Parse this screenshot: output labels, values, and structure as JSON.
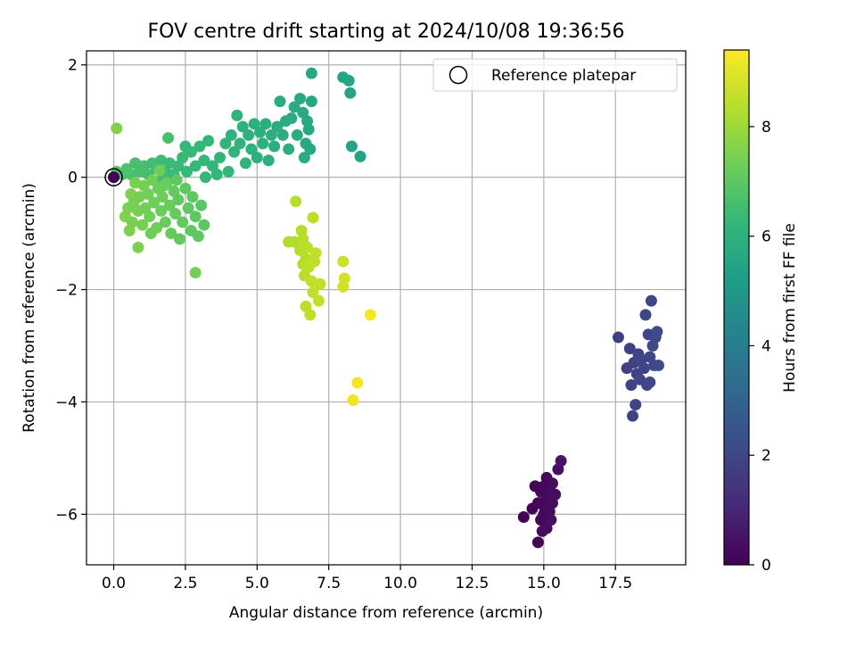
{
  "chart_data": {
    "type": "scatter",
    "title": "FOV centre drift starting at 2024/10/08 19:36:56",
    "xlabel": "Angular distance from reference (arcmin)",
    "ylabel": "Rotation from reference (arcmin)",
    "xlim": [
      -0.95,
      19.95
    ],
    "ylim": [
      -6.9,
      2.25
    ],
    "xticks": [
      0.0,
      2.5,
      5.0,
      7.5,
      10.0,
      12.5,
      15.0,
      17.5
    ],
    "xtick_labels": [
      "0.0",
      "2.5",
      "5.0",
      "7.5",
      "10.0",
      "12.5",
      "15.0",
      "17.5"
    ],
    "yticks": [
      2,
      0,
      -2,
      -4,
      -6
    ],
    "ytick_labels": [
      "2",
      "0",
      "−2",
      "−4",
      "−6"
    ],
    "grid": true,
    "colormap": "viridis",
    "colormap_stops": [
      "#440154",
      "#482878",
      "#3e4989",
      "#31688e",
      "#26828e",
      "#1f9e89",
      "#35b779",
      "#6ece58",
      "#b5de2b",
      "#fde725"
    ],
    "colorbar": {
      "label": "Hours from first FF file",
      "range": [
        0,
        9.4
      ],
      "ticks": [
        0,
        2,
        4,
        6,
        8
      ],
      "tick_labels": [
        "0",
        "2",
        "4",
        "6",
        "8"
      ]
    },
    "legend": {
      "label": "Reference platepar",
      "placement": "top-right"
    },
    "reference_point": {
      "x": 0.0,
      "y": 0.0,
      "c": 0.0
    },
    "series": [
      {
        "points": [
          {
            "x": 14.3,
            "y": -6.05,
            "c": 0.1
          },
          {
            "x": 14.6,
            "y": -5.9,
            "c": 0.1
          },
          {
            "x": 14.7,
            "y": -5.5,
            "c": 0.1
          },
          {
            "x": 14.8,
            "y": -6.5,
            "c": 0.1
          },
          {
            "x": 14.8,
            "y": -5.8,
            "c": 0.15
          },
          {
            "x": 14.9,
            "y": -6.1,
            "c": 0.15
          },
          {
            "x": 14.9,
            "y": -5.6,
            "c": 0.15
          },
          {
            "x": 15.0,
            "y": -5.85,
            "c": 0.15
          },
          {
            "x": 15.0,
            "y": -5.5,
            "c": 0.2
          },
          {
            "x": 15.0,
            "y": -6.0,
            "c": 0.2
          },
          {
            "x": 15.1,
            "y": -5.7,
            "c": 0.2
          },
          {
            "x": 15.1,
            "y": -5.35,
            "c": 0.2
          },
          {
            "x": 15.1,
            "y": -6.25,
            "c": 0.25
          },
          {
            "x": 15.2,
            "y": -5.95,
            "c": 0.25
          },
          {
            "x": 15.2,
            "y": -5.55,
            "c": 0.25
          },
          {
            "x": 15.3,
            "y": -5.8,
            "c": 0.3
          },
          {
            "x": 15.3,
            "y": -5.45,
            "c": 0.3
          },
          {
            "x": 15.4,
            "y": -5.65,
            "c": 0.35
          },
          {
            "x": 14.95,
            "y": -6.3,
            "c": 0.3
          },
          {
            "x": 15.25,
            "y": -6.1,
            "c": 0.35
          },
          {
            "x": 15.5,
            "y": -5.2,
            "c": 0.4
          },
          {
            "x": 15.6,
            "y": -5.05,
            "c": 0.45
          }
        ]
      },
      {
        "points": [
          {
            "x": 17.6,
            "y": -2.85,
            "c": 1.75
          },
          {
            "x": 17.9,
            "y": -3.4,
            "c": 1.8
          },
          {
            "x": 18.0,
            "y": -3.05,
            "c": 1.8
          },
          {
            "x": 18.05,
            "y": -3.7,
            "c": 1.85
          },
          {
            "x": 18.1,
            "y": -4.25,
            "c": 1.85
          },
          {
            "x": 18.15,
            "y": -3.3,
            "c": 1.85
          },
          {
            "x": 18.2,
            "y": -4.05,
            "c": 1.9
          },
          {
            "x": 18.25,
            "y": -3.5,
            "c": 1.9
          },
          {
            "x": 18.3,
            "y": -3.15,
            "c": 1.9
          },
          {
            "x": 18.35,
            "y": -3.6,
            "c": 1.95
          },
          {
            "x": 18.4,
            "y": -3.25,
            "c": 1.95
          },
          {
            "x": 18.5,
            "y": -3.4,
            "c": 1.95
          },
          {
            "x": 18.55,
            "y": -2.45,
            "c": 2.0
          },
          {
            "x": 18.6,
            "y": -3.7,
            "c": 2.0
          },
          {
            "x": 18.65,
            "y": -2.8,
            "c": 2.0
          },
          {
            "x": 18.7,
            "y": -3.2,
            "c": 2.05
          },
          {
            "x": 18.7,
            "y": -3.65,
            "c": 2.05
          },
          {
            "x": 18.75,
            "y": -2.2,
            "c": 2.05
          },
          {
            "x": 18.8,
            "y": -3.0,
            "c": 2.1
          },
          {
            "x": 18.85,
            "y": -3.35,
            "c": 2.1
          },
          {
            "x": 18.9,
            "y": -2.85,
            "c": 2.1
          },
          {
            "x": 18.95,
            "y": -2.75,
            "c": 2.15
          },
          {
            "x": 19.0,
            "y": -3.35,
            "c": 2.15
          }
        ]
      },
      {
        "points": [
          {
            "x": 3.6,
            "y": 0.05,
            "c": 6.2
          },
          {
            "x": 3.7,
            "y": 0.35,
            "c": 6.15
          },
          {
            "x": 3.9,
            "y": 0.6,
            "c": 6.1
          },
          {
            "x": 4.0,
            "y": 0.1,
            "c": 6.2
          },
          {
            "x": 4.1,
            "y": 0.75,
            "c": 6.1
          },
          {
            "x": 4.2,
            "y": 0.45,
            "c": 6.1
          },
          {
            "x": 4.3,
            "y": 1.1,
            "c": 6.05
          },
          {
            "x": 4.4,
            "y": 0.6,
            "c": 6.05
          },
          {
            "x": 4.5,
            "y": 0.9,
            "c": 6.0
          },
          {
            "x": 4.6,
            "y": 0.25,
            "c": 6.1
          },
          {
            "x": 4.7,
            "y": 0.75,
            "c": 6.0
          },
          {
            "x": 4.8,
            "y": 0.5,
            "c": 6.0
          },
          {
            "x": 4.9,
            "y": 0.95,
            "c": 5.95
          },
          {
            "x": 5.0,
            "y": 0.35,
            "c": 6.0
          },
          {
            "x": 5.1,
            "y": 0.8,
            "c": 5.95
          },
          {
            "x": 5.2,
            "y": 0.6,
            "c": 5.95
          },
          {
            "x": 5.3,
            "y": 0.95,
            "c": 5.9
          },
          {
            "x": 5.4,
            "y": 0.3,
            "c": 5.95
          },
          {
            "x": 5.5,
            "y": 0.75,
            "c": 5.9
          },
          {
            "x": 5.6,
            "y": 0.55,
            "c": 5.9
          },
          {
            "x": 5.7,
            "y": 0.9,
            "c": 5.85
          },
          {
            "x": 5.8,
            "y": 1.35,
            "c": 5.8
          },
          {
            "x": 5.9,
            "y": 0.75,
            "c": 5.85
          },
          {
            "x": 6.0,
            "y": 1.0,
            "c": 5.8
          },
          {
            "x": 6.1,
            "y": 0.5,
            "c": 5.85
          },
          {
            "x": 6.2,
            "y": 1.05,
            "c": 5.75
          },
          {
            "x": 6.3,
            "y": 1.25,
            "c": 5.75
          },
          {
            "x": 6.4,
            "y": 0.75,
            "c": 5.75
          },
          {
            "x": 6.5,
            "y": 1.4,
            "c": 5.7
          },
          {
            "x": 6.6,
            "y": 1.15,
            "c": 5.7
          },
          {
            "x": 6.65,
            "y": 0.35,
            "c": 5.75
          },
          {
            "x": 6.7,
            "y": 0.6,
            "c": 5.7
          },
          {
            "x": 6.75,
            "y": 1.0,
            "c": 5.7
          },
          {
            "x": 6.8,
            "y": 0.85,
            "c": 5.65
          },
          {
            "x": 6.85,
            "y": 0.5,
            "c": 5.65
          },
          {
            "x": 6.9,
            "y": 1.35,
            "c": 5.65
          },
          {
            "x": 6.9,
            "y": 1.85,
            "c": 5.6
          },
          {
            "x": 8.0,
            "y": 1.78,
            "c": 5.5
          },
          {
            "x": 8.2,
            "y": 1.72,
            "c": 5.5
          },
          {
            "x": 8.25,
            "y": 1.5,
            "c": 5.5
          },
          {
            "x": 8.3,
            "y": 0.55,
            "c": 5.45
          },
          {
            "x": 8.6,
            "y": 0.37,
            "c": 5.4
          }
        ]
      },
      {
        "points": [
          {
            "x": 0.1,
            "y": 0.1,
            "c": 6.8
          },
          {
            "x": 0.3,
            "y": 0.05,
            "c": 6.75
          },
          {
            "x": 0.45,
            "y": 0.15,
            "c": 6.7
          },
          {
            "x": 0.6,
            "y": 0.05,
            "c": 6.7
          },
          {
            "x": 0.75,
            "y": 0.25,
            "c": 6.65
          },
          {
            "x": 0.9,
            "y": 0.1,
            "c": 6.6
          },
          {
            "x": 1.05,
            "y": 0.2,
            "c": 6.6
          },
          {
            "x": 1.2,
            "y": 0.05,
            "c": 6.55
          },
          {
            "x": 1.35,
            "y": 0.25,
            "c": 6.5
          },
          {
            "x": 1.5,
            "y": 0.15,
            "c": 6.5
          },
          {
            "x": 1.65,
            "y": 0.3,
            "c": 6.45
          },
          {
            "x": 1.8,
            "y": 0.1,
            "c": 6.45
          },
          {
            "x": 1.95,
            "y": 0.25,
            "c": 6.4
          },
          {
            "x": 2.1,
            "y": 0.05,
            "c": 6.4
          },
          {
            "x": 2.25,
            "y": 0.2,
            "c": 6.35
          },
          {
            "x": 2.4,
            "y": 0.35,
            "c": 6.35
          },
          {
            "x": 2.55,
            "y": 0.1,
            "c": 6.3
          },
          {
            "x": 2.7,
            "y": 0.45,
            "c": 6.3
          },
          {
            "x": 2.85,
            "y": 0.2,
            "c": 6.3
          },
          {
            "x": 3.0,
            "y": 0.55,
            "c": 6.25
          },
          {
            "x": 3.15,
            "y": 0.3,
            "c": 6.25
          },
          {
            "x": 3.3,
            "y": 0.65,
            "c": 6.2
          },
          {
            "x": 3.45,
            "y": 0.2,
            "c": 6.2
          },
          {
            "x": 2.5,
            "y": 0.55,
            "c": 6.3
          },
          {
            "x": 3.2,
            "y": 0.0,
            "c": 6.25
          },
          {
            "x": 1.9,
            "y": 0.7,
            "c": 6.6
          },
          {
            "x": 1.65,
            "y": -0.05,
            "c": 6.5
          }
        ]
      },
      {
        "points": [
          {
            "x": 0.1,
            "y": 0.87,
            "c": 7.6
          },
          {
            "x": 0.85,
            "y": -1.25,
            "c": 7.5
          },
          {
            "x": 2.85,
            "y": -1.7,
            "c": 7.4
          },
          {
            "x": 0.5,
            "y": -0.55,
            "c": 7.5
          },
          {
            "x": 0.6,
            "y": -0.3,
            "c": 7.5
          },
          {
            "x": 0.65,
            "y": -0.8,
            "c": 7.45
          },
          {
            "x": 0.75,
            "y": -0.1,
            "c": 7.45
          },
          {
            "x": 0.85,
            "y": -0.6,
            "c": 7.45
          },
          {
            "x": 0.9,
            "y": -0.35,
            "c": 7.4
          },
          {
            "x": 1.0,
            "y": -0.85,
            "c": 7.4
          },
          {
            "x": 1.05,
            "y": -0.15,
            "c": 7.4
          },
          {
            "x": 1.1,
            "y": -0.55,
            "c": 7.35
          },
          {
            "x": 1.2,
            "y": -0.3,
            "c": 7.35
          },
          {
            "x": 1.25,
            "y": -0.7,
            "c": 7.35
          },
          {
            "x": 1.35,
            "y": -0.05,
            "c": 7.3
          },
          {
            "x": 1.4,
            "y": -0.45,
            "c": 7.3
          },
          {
            "x": 1.5,
            "y": -0.9,
            "c": 7.3
          },
          {
            "x": 1.55,
            "y": -0.2,
            "c": 7.25
          },
          {
            "x": 1.65,
            "y": -0.6,
            "c": 7.25
          },
          {
            "x": 1.7,
            "y": -0.35,
            "c": 7.25
          },
          {
            "x": 1.8,
            "y": -0.8,
            "c": 7.2
          },
          {
            "x": 1.85,
            "y": -0.1,
            "c": 7.2
          },
          {
            "x": 1.95,
            "y": -0.5,
            "c": 7.2
          },
          {
            "x": 2.0,
            "y": -1.0,
            "c": 7.15
          },
          {
            "x": 2.1,
            "y": -0.25,
            "c": 7.15
          },
          {
            "x": 2.15,
            "y": -0.65,
            "c": 7.15
          },
          {
            "x": 2.25,
            "y": -0.4,
            "c": 7.1
          },
          {
            "x": 2.3,
            "y": -1.1,
            "c": 7.1
          },
          {
            "x": 2.4,
            "y": -0.8,
            "c": 7.1
          },
          {
            "x": 2.5,
            "y": -0.2,
            "c": 7.05
          },
          {
            "x": 2.6,
            "y": -0.55,
            "c": 7.05
          },
          {
            "x": 2.7,
            "y": -0.95,
            "c": 7.05
          },
          {
            "x": 2.75,
            "y": -0.35,
            "c": 7.0
          },
          {
            "x": 2.85,
            "y": -0.7,
            "c": 7.0
          },
          {
            "x": 2.95,
            "y": -1.05,
            "c": 7.0
          },
          {
            "x": 3.05,
            "y": -0.5,
            "c": 6.95
          },
          {
            "x": 3.15,
            "y": -0.85,
            "c": 6.95
          },
          {
            "x": 0.4,
            "y": -0.7,
            "c": 7.55
          },
          {
            "x": 0.55,
            "y": -0.95,
            "c": 7.5
          },
          {
            "x": 1.3,
            "y": -1.0,
            "c": 7.3
          },
          {
            "x": 1.75,
            "y": -0.15,
            "c": 7.25
          },
          {
            "x": 2.2,
            "y": -0.05,
            "c": 7.1
          },
          {
            "x": 0.7,
            "y": -0.45,
            "c": 7.45
          },
          {
            "x": 1.6,
            "y": 0.12,
            "c": 7.3
          }
        ]
      },
      {
        "points": [
          {
            "x": 6.1,
            "y": -1.15,
            "c": 8.3
          },
          {
            "x": 6.3,
            "y": -1.15,
            "c": 8.3
          },
          {
            "x": 6.35,
            "y": -0.43,
            "c": 8.35
          },
          {
            "x": 6.5,
            "y": -1.3,
            "c": 8.35
          },
          {
            "x": 6.55,
            "y": -0.95,
            "c": 8.35
          },
          {
            "x": 6.6,
            "y": -1.55,
            "c": 8.4
          },
          {
            "x": 6.6,
            "y": -1.1,
            "c": 8.4
          },
          {
            "x": 6.65,
            "y": -1.75,
            "c": 8.4
          },
          {
            "x": 6.7,
            "y": -1.45,
            "c": 8.4
          },
          {
            "x": 6.7,
            "y": -2.3,
            "c": 8.45
          },
          {
            "x": 6.75,
            "y": -1.25,
            "c": 8.45
          },
          {
            "x": 6.8,
            "y": -1.6,
            "c": 8.45
          },
          {
            "x": 6.85,
            "y": -2.45,
            "c": 8.5
          },
          {
            "x": 6.9,
            "y": -1.85,
            "c": 8.5
          },
          {
            "x": 6.95,
            "y": -0.72,
            "c": 8.45
          },
          {
            "x": 6.95,
            "y": -2.05,
            "c": 8.5
          },
          {
            "x": 7.0,
            "y": -1.5,
            "c": 8.5
          },
          {
            "x": 7.05,
            "y": -1.35,
            "c": 8.5
          },
          {
            "x": 7.15,
            "y": -2.2,
            "c": 8.55
          },
          {
            "x": 7.2,
            "y": -1.9,
            "c": 8.55
          },
          {
            "x": 8.0,
            "y": -1.5,
            "c": 8.7
          },
          {
            "x": 8.0,
            "y": -1.95,
            "c": 8.7
          },
          {
            "x": 8.05,
            "y": -1.8,
            "c": 8.75
          }
        ]
      },
      {
        "points": [
          {
            "x": 8.35,
            "y": -3.97,
            "c": 9.2
          },
          {
            "x": 8.5,
            "y": -3.66,
            "c": 9.25
          },
          {
            "x": 8.95,
            "y": -2.45,
            "c": 9.3
          }
        ]
      }
    ]
  }
}
